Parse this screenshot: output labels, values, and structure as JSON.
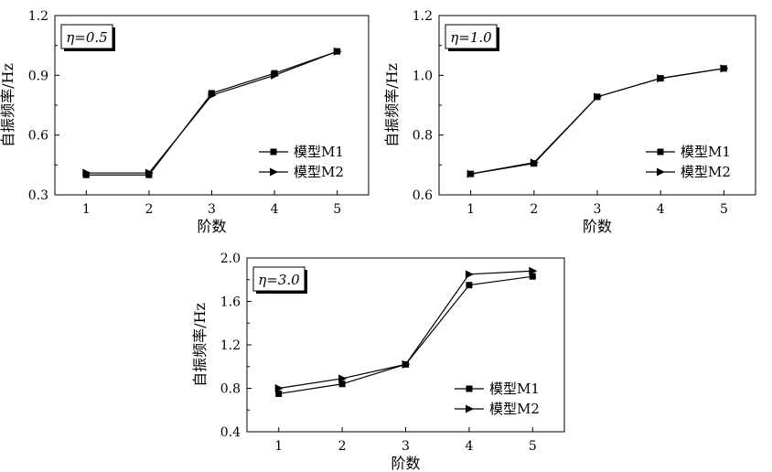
{
  "chart_data": [
    {
      "type": "line",
      "annotation": "η=0.5",
      "xlabel": "阶数",
      "ylabel": "自振频率/Hz",
      "categories": [
        "1",
        "2",
        "3",
        "4",
        "5"
      ],
      "ylim": [
        0.3,
        1.2
      ],
      "yticks": [
        "0.3",
        "0.6",
        "0.9",
        "1.2"
      ],
      "legend_position": "bottom-right",
      "series": [
        {
          "name": "模型M1",
          "marker": "square",
          "values": [
            0.4,
            0.4,
            0.81,
            0.91,
            1.02
          ]
        },
        {
          "name": "模型M2",
          "marker": "triangle-right",
          "values": [
            0.41,
            0.41,
            0.8,
            0.9,
            1.02
          ]
        }
      ]
    },
    {
      "type": "line",
      "annotation": "η=1.0",
      "xlabel": "阶数",
      "ylabel": "自振频率/Hz",
      "categories": [
        "1",
        "2",
        "3",
        "4",
        "5"
      ],
      "ylim": [
        0.6,
        1.2
      ],
      "yticks": [
        "0.6",
        "0.8",
        "1.0",
        "1.2"
      ],
      "legend_position": "bottom-right",
      "series": [
        {
          "name": "模型M1",
          "marker": "square",
          "values": [
            0.67,
            0.705,
            0.928,
            0.99,
            1.023
          ]
        },
        {
          "name": "模型M2",
          "marker": "triangle-right",
          "values": [
            0.67,
            0.708,
            0.928,
            0.99,
            1.023
          ]
        }
      ]
    },
    {
      "type": "line",
      "annotation": "η=3.0",
      "xlabel": "阶数",
      "ylabel": "自振频率/Hz",
      "categories": [
        "1",
        "2",
        "3",
        "4",
        "5"
      ],
      "ylim": [
        0.4,
        2.0
      ],
      "yticks": [
        "0.4",
        "0.8",
        "1.2",
        "1.6",
        "2.0"
      ],
      "legend_position": "bottom-right",
      "series": [
        {
          "name": "模型M1",
          "marker": "square",
          "values": [
            0.75,
            0.84,
            1.02,
            1.75,
            1.83
          ]
        },
        {
          "name": "模型M2",
          "marker": "triangle-right",
          "values": [
            0.8,
            0.89,
            1.02,
            1.85,
            1.88
          ]
        }
      ]
    }
  ]
}
